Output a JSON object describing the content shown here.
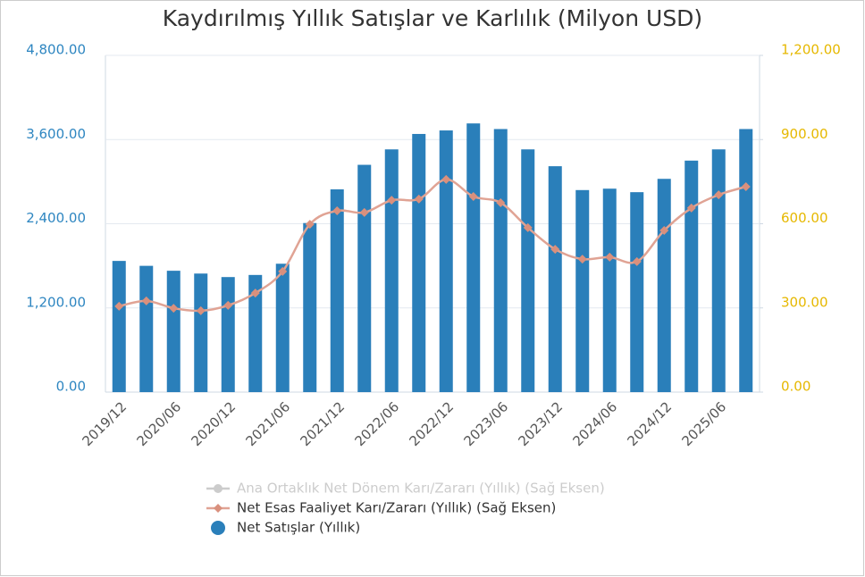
{
  "chart_data": {
    "type": "bar",
    "title": "Kaydırılmış Yıllık Satışlar ve Karlılık (Milyon USD)",
    "categories": [
      "2019/12",
      null,
      "2020/06",
      null,
      "2020/12",
      null,
      "2021/06",
      null,
      "2021/12",
      null,
      "2022/06",
      null,
      "2022/12",
      null,
      "2023/06",
      null,
      "2023/12",
      null,
      "2024/06",
      null,
      "2024/12",
      null,
      "2025/06",
      null
    ],
    "series": [
      {
        "name": "Net Satışlar (Yıllık)",
        "type": "bar",
        "color": "#2a7fba",
        "axis": "y",
        "values": [
          1870,
          1800,
          1730,
          1690,
          1640,
          1670,
          1830,
          2410,
          2890,
          3240,
          3460,
          3680,
          3730,
          3830,
          3750,
          3460,
          3220,
          2880,
          2900,
          2850,
          3040,
          3300,
          3460,
          3750
        ]
      },
      {
        "name": "Net Esas Faaliyet Karı/Zararı (Yıllık) (Sağ Eksen)",
        "type": "line",
        "color": "#e0a394",
        "axis": "y2",
        "values": [
          306,
          325,
          299,
          290,
          309,
          353,
          430,
          598,
          646,
          640,
          684,
          688,
          758,
          697,
          675,
          586,
          509,
          474,
          481,
          465,
          576,
          656,
          703,
          732
        ]
      },
      {
        "name": "Ana Ortaklık Net Dönem Karı/Zararı (Yıllık) (Sağ Eksen)",
        "type": "line",
        "color": "#cccccc",
        "axis": "y2",
        "hidden": true
      }
    ],
    "ylim": [
      0,
      4800
    ],
    "yticks": [
      {
        "value": 0,
        "label": "0.00"
      },
      {
        "value": 1200,
        "label": "1,200.00"
      },
      {
        "value": 2400,
        "label": "2,400.00"
      },
      {
        "value": 3600,
        "label": "3,600.00"
      },
      {
        "value": 4800,
        "label": "4,800.00"
      }
    ],
    "y2lim": [
      0,
      1200
    ],
    "y2ticks": [
      {
        "value": 0,
        "label": "0.00"
      },
      {
        "value": 300,
        "label": "300.00"
      },
      {
        "value": 600,
        "label": "600.00"
      },
      {
        "value": 900,
        "label": "900.00"
      },
      {
        "value": 1200,
        "label": "1,200.00"
      }
    ],
    "grid": true
  }
}
